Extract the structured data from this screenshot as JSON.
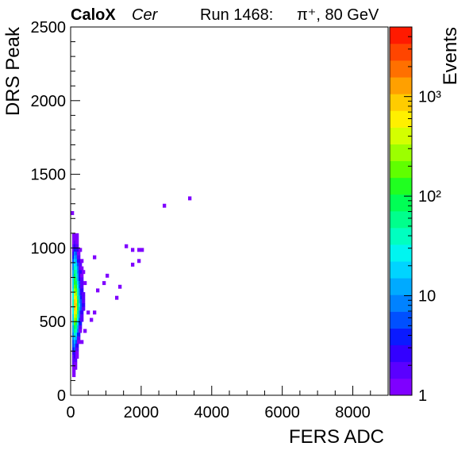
{
  "header": {
    "experiment": "CaloX",
    "channel": "Cer",
    "run": "Run 1468:",
    "beam": "π⁺, 80 GeV"
  },
  "chart_data": {
    "type": "heatmap",
    "xlabel": "FERS ADC",
    "ylabel": "DRS Peak",
    "zlabel": "Events",
    "xlim": [
      0,
      9000
    ],
    "ylim": [
      0,
      2500
    ],
    "zscale": "log",
    "zlim": [
      1,
      5000
    ],
    "xticks": [
      "0",
      "2000",
      "4000",
      "6000",
      "8000"
    ],
    "yticks": [
      "0",
      "500",
      "1000",
      "1500",
      "2000",
      "2500"
    ],
    "zticks": [
      "1",
      "10",
      "10²",
      "10³"
    ],
    "bin_size": {
      "x": 90,
      "y": 25
    },
    "colors": [
      "#7f00ff",
      "#5a00ff",
      "#3300ff",
      "#0a1aff",
      "#0050ff",
      "#0082ff",
      "#00aaff",
      "#00d4ff",
      "#00f5f0",
      "#00ffc0",
      "#00ff8c",
      "#00ff55",
      "#20ff20",
      "#60ff00",
      "#9cff00",
      "#d4ff00",
      "#fff000",
      "#ffcc00",
      "#ffa000",
      "#ff7000",
      "#ff4500",
      "#ff1a00"
    ],
    "bins": [
      {
        "x": 0,
        "y": 1225,
        "z": 1
      },
      {
        "x": 45,
        "y": 1075,
        "z": 1
      },
      {
        "x": 135,
        "y": 1075,
        "z": 1
      },
      {
        "x": 45,
        "y": 1050,
        "z": 1
      },
      {
        "x": 90,
        "y": 1050,
        "z": 1
      },
      {
        "x": 135,
        "y": 1050,
        "z": 1
      },
      {
        "x": 45,
        "y": 1025,
        "z": 1
      },
      {
        "x": 90,
        "y": 1025,
        "z": 2
      },
      {
        "x": 135,
        "y": 1025,
        "z": 1
      },
      {
        "x": 45,
        "y": 1000,
        "z": 2
      },
      {
        "x": 90,
        "y": 1000,
        "z": 3
      },
      {
        "x": 135,
        "y": 1000,
        "z": 2
      },
      {
        "x": 45,
        "y": 975,
        "z": 2
      },
      {
        "x": 90,
        "y": 975,
        "z": 4
      },
      {
        "x": 135,
        "y": 975,
        "z": 3
      },
      {
        "x": 225,
        "y": 975,
        "z": 1
      },
      {
        "x": 45,
        "y": 950,
        "z": 3
      },
      {
        "x": 90,
        "y": 950,
        "z": 8
      },
      {
        "x": 135,
        "y": 950,
        "z": 5
      },
      {
        "x": 180,
        "y": 950,
        "z": 1
      },
      {
        "x": 45,
        "y": 925,
        "z": 4
      },
      {
        "x": 90,
        "y": 925,
        "z": 14
      },
      {
        "x": 135,
        "y": 925,
        "z": 8
      },
      {
        "x": 180,
        "y": 925,
        "z": 2
      },
      {
        "x": 630,
        "y": 925,
        "z": 1
      },
      {
        "x": 45,
        "y": 900,
        "z": 6
      },
      {
        "x": 90,
        "y": 900,
        "z": 20
      },
      {
        "x": 135,
        "y": 900,
        "z": 12
      },
      {
        "x": 180,
        "y": 900,
        "z": 3
      },
      {
        "x": 270,
        "y": 900,
        "z": 1
      },
      {
        "x": 45,
        "y": 875,
        "z": 8
      },
      {
        "x": 90,
        "y": 875,
        "z": 30
      },
      {
        "x": 135,
        "y": 875,
        "z": 18
      },
      {
        "x": 180,
        "y": 875,
        "z": 5
      },
      {
        "x": 225,
        "y": 875,
        "z": 2
      },
      {
        "x": 45,
        "y": 850,
        "z": 10
      },
      {
        "x": 90,
        "y": 850,
        "z": 45
      },
      {
        "x": 135,
        "y": 850,
        "z": 25
      },
      {
        "x": 180,
        "y": 850,
        "z": 7
      },
      {
        "x": 225,
        "y": 850,
        "z": 2
      },
      {
        "x": 270,
        "y": 850,
        "z": 1
      },
      {
        "x": 45,
        "y": 825,
        "z": 12
      },
      {
        "x": 90,
        "y": 825,
        "z": 60
      },
      {
        "x": 135,
        "y": 825,
        "z": 35
      },
      {
        "x": 180,
        "y": 825,
        "z": 9
      },
      {
        "x": 225,
        "y": 825,
        "z": 3
      },
      {
        "x": 315,
        "y": 825,
        "z": 1
      },
      {
        "x": 45,
        "y": 800,
        "z": 15
      },
      {
        "x": 90,
        "y": 800,
        "z": 80
      },
      {
        "x": 135,
        "y": 800,
        "z": 45
      },
      {
        "x": 180,
        "y": 800,
        "z": 12
      },
      {
        "x": 225,
        "y": 800,
        "z": 3
      },
      {
        "x": 270,
        "y": 800,
        "z": 1
      },
      {
        "x": 45,
        "y": 775,
        "z": 18
      },
      {
        "x": 90,
        "y": 775,
        "z": 110
      },
      {
        "x": 135,
        "y": 775,
        "z": 60
      },
      {
        "x": 180,
        "y": 775,
        "z": 15
      },
      {
        "x": 225,
        "y": 775,
        "z": 4
      },
      {
        "x": 270,
        "y": 775,
        "z": 2
      },
      {
        "x": 45,
        "y": 750,
        "z": 20
      },
      {
        "x": 90,
        "y": 750,
        "z": 150
      },
      {
        "x": 135,
        "y": 750,
        "z": 90
      },
      {
        "x": 180,
        "y": 750,
        "z": 20
      },
      {
        "x": 225,
        "y": 750,
        "z": 5
      },
      {
        "x": 270,
        "y": 750,
        "z": 2
      },
      {
        "x": 360,
        "y": 750,
        "z": 1
      },
      {
        "x": 45,
        "y": 725,
        "z": 22
      },
      {
        "x": 90,
        "y": 725,
        "z": 220
      },
      {
        "x": 135,
        "y": 725,
        "z": 140
      },
      {
        "x": 180,
        "y": 725,
        "z": 28
      },
      {
        "x": 225,
        "y": 725,
        "z": 6
      },
      {
        "x": 270,
        "y": 725,
        "z": 2
      },
      {
        "x": 45,
        "y": 700,
        "z": 25
      },
      {
        "x": 90,
        "y": 700,
        "z": 320
      },
      {
        "x": 135,
        "y": 700,
        "z": 200
      },
      {
        "x": 180,
        "y": 700,
        "z": 35
      },
      {
        "x": 225,
        "y": 700,
        "z": 8
      },
      {
        "x": 270,
        "y": 700,
        "z": 3
      },
      {
        "x": 45,
        "y": 675,
        "z": 25
      },
      {
        "x": 90,
        "y": 675,
        "z": 450
      },
      {
        "x": 135,
        "y": 675,
        "z": 300
      },
      {
        "x": 180,
        "y": 675,
        "z": 45
      },
      {
        "x": 225,
        "y": 675,
        "z": 10
      },
      {
        "x": 270,
        "y": 675,
        "z": 3
      },
      {
        "x": 315,
        "y": 675,
        "z": 2
      },
      {
        "x": 45,
        "y": 650,
        "z": 30
      },
      {
        "x": 90,
        "y": 650,
        "z": 600
      },
      {
        "x": 135,
        "y": 650,
        "z": 450
      },
      {
        "x": 180,
        "y": 650,
        "z": 60
      },
      {
        "x": 225,
        "y": 650,
        "z": 12
      },
      {
        "x": 270,
        "y": 650,
        "z": 4
      },
      {
        "x": 315,
        "y": 650,
        "z": 2
      },
      {
        "x": 45,
        "y": 625,
        "z": 35
      },
      {
        "x": 90,
        "y": 625,
        "z": 800
      },
      {
        "x": 135,
        "y": 625,
        "z": 650
      },
      {
        "x": 180,
        "y": 625,
        "z": 80
      },
      {
        "x": 225,
        "y": 625,
        "z": 15
      },
      {
        "x": 270,
        "y": 625,
        "z": 5
      },
      {
        "x": 315,
        "y": 625,
        "z": 2
      },
      {
        "x": 45,
        "y": 600,
        "z": 35
      },
      {
        "x": 90,
        "y": 600,
        "z": 900
      },
      {
        "x": 135,
        "y": 600,
        "z": 750
      },
      {
        "x": 180,
        "y": 600,
        "z": 90
      },
      {
        "x": 225,
        "y": 600,
        "z": 18
      },
      {
        "x": 270,
        "y": 600,
        "z": 6
      },
      {
        "x": 315,
        "y": 600,
        "z": 3
      },
      {
        "x": 45,
        "y": 575,
        "z": 30
      },
      {
        "x": 90,
        "y": 575,
        "z": 750
      },
      {
        "x": 135,
        "y": 575,
        "z": 600
      },
      {
        "x": 180,
        "y": 575,
        "z": 75
      },
      {
        "x": 225,
        "y": 575,
        "z": 14
      },
      {
        "x": 270,
        "y": 575,
        "z": 5
      },
      {
        "x": 315,
        "y": 575,
        "z": 2
      },
      {
        "x": 45,
        "y": 550,
        "z": 25
      },
      {
        "x": 90,
        "y": 550,
        "z": 550
      },
      {
        "x": 135,
        "y": 550,
        "z": 400
      },
      {
        "x": 180,
        "y": 550,
        "z": 55
      },
      {
        "x": 225,
        "y": 550,
        "z": 10
      },
      {
        "x": 270,
        "y": 550,
        "z": 3
      },
      {
        "x": 45,
        "y": 525,
        "z": 22
      },
      {
        "x": 90,
        "y": 525,
        "z": 380
      },
      {
        "x": 135,
        "y": 525,
        "z": 260
      },
      {
        "x": 180,
        "y": 525,
        "z": 40
      },
      {
        "x": 225,
        "y": 525,
        "z": 8
      },
      {
        "x": 270,
        "y": 525,
        "z": 2
      },
      {
        "x": 45,
        "y": 500,
        "z": 20
      },
      {
        "x": 90,
        "y": 500,
        "z": 250
      },
      {
        "x": 135,
        "y": 500,
        "z": 160
      },
      {
        "x": 180,
        "y": 500,
        "z": 28
      },
      {
        "x": 225,
        "y": 500,
        "z": 5
      },
      {
        "x": 270,
        "y": 500,
        "z": 2
      },
      {
        "x": 45,
        "y": 475,
        "z": 18
      },
      {
        "x": 90,
        "y": 475,
        "z": 160
      },
      {
        "x": 135,
        "y": 475,
        "z": 100
      },
      {
        "x": 180,
        "y": 475,
        "z": 18
      },
      {
        "x": 225,
        "y": 475,
        "z": 4
      },
      {
        "x": 45,
        "y": 450,
        "z": 15
      },
      {
        "x": 90,
        "y": 450,
        "z": 100
      },
      {
        "x": 135,
        "y": 450,
        "z": 60
      },
      {
        "x": 180,
        "y": 450,
        "z": 12
      },
      {
        "x": 225,
        "y": 450,
        "z": 2
      },
      {
        "x": 45,
        "y": 425,
        "z": 12
      },
      {
        "x": 90,
        "y": 425,
        "z": 60
      },
      {
        "x": 135,
        "y": 425,
        "z": 35
      },
      {
        "x": 180,
        "y": 425,
        "z": 7
      },
      {
        "x": 225,
        "y": 425,
        "z": 1
      },
      {
        "x": 45,
        "y": 400,
        "z": 10
      },
      {
        "x": 90,
        "y": 400,
        "z": 35
      },
      {
        "x": 135,
        "y": 400,
        "z": 20
      },
      {
        "x": 180,
        "y": 400,
        "z": 4
      },
      {
        "x": 45,
        "y": 375,
        "z": 8
      },
      {
        "x": 90,
        "y": 375,
        "z": 20
      },
      {
        "x": 135,
        "y": 375,
        "z": 12
      },
      {
        "x": 180,
        "y": 375,
        "z": 2
      },
      {
        "x": 45,
        "y": 350,
        "z": 6
      },
      {
        "x": 90,
        "y": 350,
        "z": 12
      },
      {
        "x": 135,
        "y": 350,
        "z": 6
      },
      {
        "x": 180,
        "y": 350,
        "z": 1
      },
      {
        "x": 45,
        "y": 325,
        "z": 5
      },
      {
        "x": 90,
        "y": 325,
        "z": 8
      },
      {
        "x": 135,
        "y": 325,
        "z": 3
      },
      {
        "x": 45,
        "y": 300,
        "z": 4
      },
      {
        "x": 90,
        "y": 300,
        "z": 5
      },
      {
        "x": 135,
        "y": 300,
        "z": 2
      },
      {
        "x": 45,
        "y": 275,
        "z": 3
      },
      {
        "x": 90,
        "y": 275,
        "z": 3
      },
      {
        "x": 135,
        "y": 275,
        "z": 1
      },
      {
        "x": 45,
        "y": 250,
        "z": 2
      },
      {
        "x": 90,
        "y": 250,
        "z": 3
      },
      {
        "x": 135,
        "y": 250,
        "z": 1
      },
      {
        "x": 45,
        "y": 225,
        "z": 2
      },
      {
        "x": 90,
        "y": 225,
        "z": 2
      },
      {
        "x": 45,
        "y": 200,
        "z": 2
      },
      {
        "x": 90,
        "y": 200,
        "z": 1
      },
      {
        "x": 45,
        "y": 175,
        "z": 1
      },
      {
        "x": 90,
        "y": 175,
        "z": 1
      },
      {
        "x": 45,
        "y": 150,
        "z": 1
      },
      {
        "x": 45,
        "y": 125,
        "z": 1
      },
      {
        "x": 270,
        "y": 350,
        "z": 1
      },
      {
        "x": 360,
        "y": 425,
        "z": 1
      },
      {
        "x": 540,
        "y": 500,
        "z": 1
      },
      {
        "x": 450,
        "y": 550,
        "z": 1
      },
      {
        "x": 630,
        "y": 550,
        "z": 1
      },
      {
        "x": 720,
        "y": 700,
        "z": 1
      },
      {
        "x": 900,
        "y": 750,
        "z": 1
      },
      {
        "x": 990,
        "y": 800,
        "z": 1
      },
      {
        "x": 1260,
        "y": 650,
        "z": 1
      },
      {
        "x": 1350,
        "y": 725,
        "z": 1
      },
      {
        "x": 1530,
        "y": 1000,
        "z": 1
      },
      {
        "x": 1710,
        "y": 975,
        "z": 1
      },
      {
        "x": 1890,
        "y": 975,
        "z": 1
      },
      {
        "x": 1980,
        "y": 975,
        "z": 1
      },
      {
        "x": 1890,
        "y": 900,
        "z": 1
      },
      {
        "x": 1710,
        "y": 875,
        "z": 1
      },
      {
        "x": 2610,
        "y": 1275,
        "z": 1
      },
      {
        "x": 3330,
        "y": 1325,
        "z": 1
      }
    ]
  }
}
